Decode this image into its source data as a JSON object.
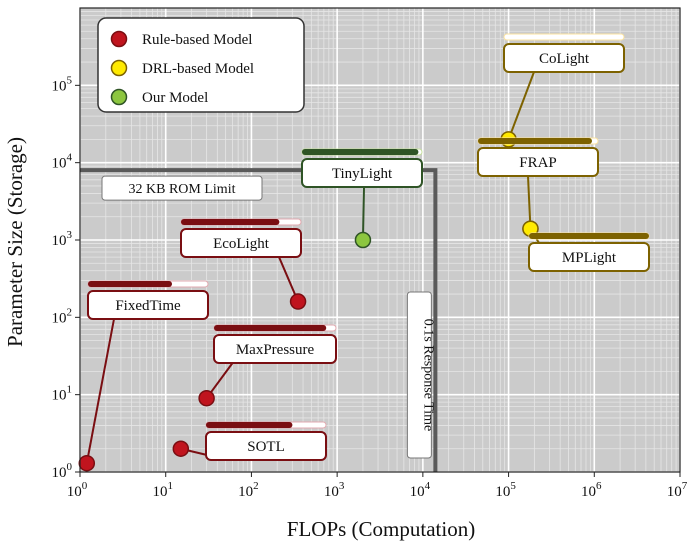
{
  "chart_data": {
    "type": "scatter",
    "xlabel": "FLOPs (Computation)",
    "ylabel": "Parameter Size (Storage)",
    "x_scale": "log",
    "y_scale": "log",
    "xlim": [
      1,
      10000000
    ],
    "ylim": [
      1,
      1000000
    ],
    "x_ticks": [
      {
        "value": 1,
        "base": "10",
        "exp": "0"
      },
      {
        "value": 10,
        "base": "10",
        "exp": "1"
      },
      {
        "value": 100,
        "base": "10",
        "exp": "2"
      },
      {
        "value": 1000,
        "base": "10",
        "exp": "3"
      },
      {
        "value": 10000,
        "base": "10",
        "exp": "4"
      },
      {
        "value": 100000,
        "base": "10",
        "exp": "5"
      },
      {
        "value": 1000000,
        "base": "10",
        "exp": "6"
      },
      {
        "value": 10000000,
        "base": "10",
        "exp": "7"
      }
    ],
    "y_ticks": [
      {
        "value": 1,
        "base": "10",
        "exp": "0"
      },
      {
        "value": 10,
        "base": "10",
        "exp": "1"
      },
      {
        "value": 100,
        "base": "10",
        "exp": "2"
      },
      {
        "value": 1000,
        "base": "10",
        "exp": "3"
      },
      {
        "value": 10000,
        "base": "10",
        "exp": "4"
      },
      {
        "value": 100000,
        "base": "10",
        "exp": "5"
      }
    ],
    "grid": true,
    "legend_position": "top-left",
    "categories": [
      {
        "name": "Rule-based Model",
        "color": "#c0141e",
        "dark": "#7a0e12",
        "light": "#e2aab0"
      },
      {
        "name": "DRL-based Model",
        "color": "#ffea00",
        "dark": "#7d6200",
        "light": "#fbe3a0"
      },
      {
        "name": "Our Model",
        "color": "#8cc63f",
        "dark": "#2f5426",
        "light": "#c5df9e"
      }
    ],
    "points": [
      {
        "name": "FixedTime",
        "category": 0,
        "x": 1.2,
        "y": 1.3,
        "bar": 0.7
      },
      {
        "name": "SOTL",
        "category": 0,
        "x": 15,
        "y": 2,
        "bar": 0.72
      },
      {
        "name": "MaxPressure",
        "category": 0,
        "x": 30,
        "y": 9,
        "bar": 0.92
      },
      {
        "name": "EcoLight",
        "category": 0,
        "x": 350,
        "y": 160,
        "bar": 0.82
      },
      {
        "name": "TinyLight",
        "category": 2,
        "x": 2000,
        "y": 1000,
        "bar": 0.97
      },
      {
        "name": "CoLight",
        "category": 1,
        "x": 100000,
        "y": 20000,
        "bar": 0.0
      },
      {
        "name": "FRAP",
        "category": 1,
        "x": 180000,
        "y": 1400,
        "bar": 0.95
      },
      {
        "name": "MPLight",
        "category": 1,
        "x": 180000,
        "y": 1400,
        "bar": 1.0
      }
    ],
    "limits": {
      "rom_y": 8000,
      "rom_label": "32 KB ROM Limit",
      "time_x": 14000,
      "time_label": "0.1s Response Time"
    }
  }
}
